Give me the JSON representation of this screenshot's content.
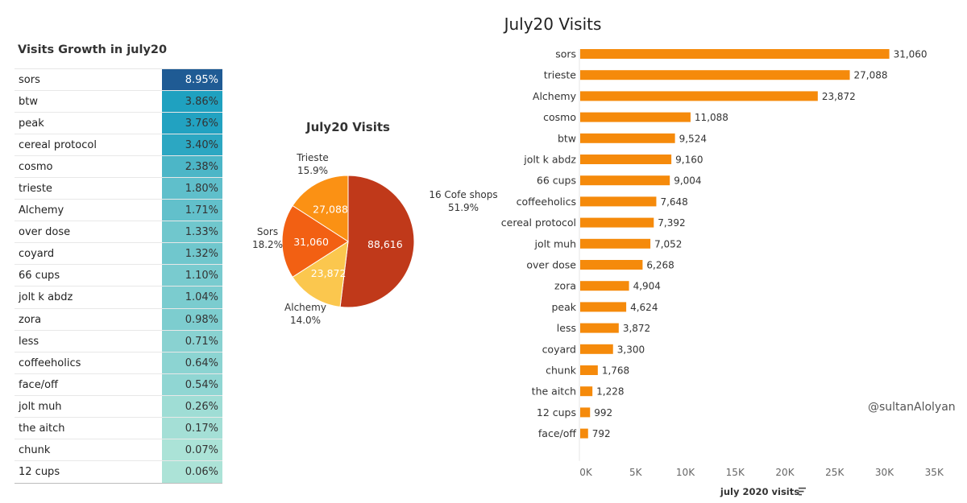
{
  "growth_table": {
    "title": "Visits Growth in july20",
    "rows": [
      {
        "name": "sors",
        "value": "8.95%",
        "pct": 8.95
      },
      {
        "name": "btw",
        "value": "3.86%",
        "pct": 3.86
      },
      {
        "name": "peak",
        "value": "3.76%",
        "pct": 3.76
      },
      {
        "name": "cereal protocol",
        "value": "3.40%",
        "pct": 3.4
      },
      {
        "name": "cosmo",
        "value": "2.38%",
        "pct": 2.38
      },
      {
        "name": "trieste",
        "value": "1.80%",
        "pct": 1.8
      },
      {
        "name": "Alchemy",
        "value": "1.71%",
        "pct": 1.71
      },
      {
        "name": "over dose",
        "value": "1.33%",
        "pct": 1.33
      },
      {
        "name": "coyard",
        "value": "1.32%",
        "pct": 1.32
      },
      {
        "name": "66 cups",
        "value": "1.10%",
        "pct": 1.1
      },
      {
        "name": "jolt k abdz",
        "value": "1.04%",
        "pct": 1.04
      },
      {
        "name": "zora",
        "value": "0.98%",
        "pct": 0.98
      },
      {
        "name": "less",
        "value": "0.71%",
        "pct": 0.71
      },
      {
        "name": "coffeeholics",
        "value": "0.64%",
        "pct": 0.64
      },
      {
        "name": "face/off",
        "value": "0.54%",
        "pct": 0.54
      },
      {
        "name": "jolt muh",
        "value": "0.26%",
        "pct": 0.26
      },
      {
        "name": "the aitch",
        "value": "0.17%",
        "pct": 0.17
      },
      {
        "name": "chunk",
        "value": "0.07%",
        "pct": 0.07
      },
      {
        "name": "12 cups",
        "value": "0.06%",
        "pct": 0.06
      }
    ]
  },
  "chart_data": [
    {
      "type": "pie",
      "title": "July20 Visits",
      "slices": [
        {
          "name": "16 Cofe shops",
          "value": 88616,
          "value_label": "88,616",
          "percent": "51.9%",
          "color": "#c0391a"
        },
        {
          "name": "Alchemy",
          "value": 23872,
          "value_label": "23,872",
          "percent": "14.0%",
          "color": "#fbc74e"
        },
        {
          "name": "Sors",
          "value": 31060,
          "value_label": "31,060",
          "percent": "18.2%",
          "color": "#f26013"
        },
        {
          "name": "Trieste",
          "value": 27088,
          "value_label": "27,088",
          "percent": "15.9%",
          "color": "#fb9114"
        }
      ]
    },
    {
      "type": "bar",
      "orientation": "horizontal",
      "title": "July20 Visits",
      "xlabel": "july 2020 visits",
      "xlim": [
        0,
        35000
      ],
      "ticks": [
        0,
        5000,
        10000,
        15000,
        20000,
        25000,
        30000,
        35000
      ],
      "tick_labels": [
        "0K",
        "5K",
        "10K",
        "15K",
        "20K",
        "25K",
        "30K",
        "35K"
      ],
      "bar_color": "#f58a0b",
      "categories": [
        "sors",
        "trieste",
        "Alchemy",
        "cosmo",
        "btw",
        "jolt k abdz",
        "66 cups",
        "coffeeholics",
        "cereal protocol",
        "jolt muh",
        "over dose",
        "zora",
        "peak",
        "less",
        "coyard",
        "chunk",
        "the aitch",
        "12 cups",
        "face/off"
      ],
      "values": [
        31060,
        27088,
        23872,
        11088,
        9524,
        9160,
        9004,
        7648,
        7392,
        7052,
        6268,
        4904,
        4624,
        3872,
        3300,
        1768,
        1228,
        992,
        792
      ],
      "value_labels": [
        "31,060",
        "27,088",
        "23,872",
        "11,088",
        "9,524",
        "9,160",
        "9,004",
        "7,648",
        "7,392",
        "7,052",
        "6,268",
        "4,904",
        "4,624",
        "3,872",
        "3,300",
        "1,768",
        "1,228",
        "992",
        "792"
      ]
    }
  ],
  "watermark": "@sultanAlolyan",
  "icons": {
    "sort": "sort-descending-icon"
  }
}
